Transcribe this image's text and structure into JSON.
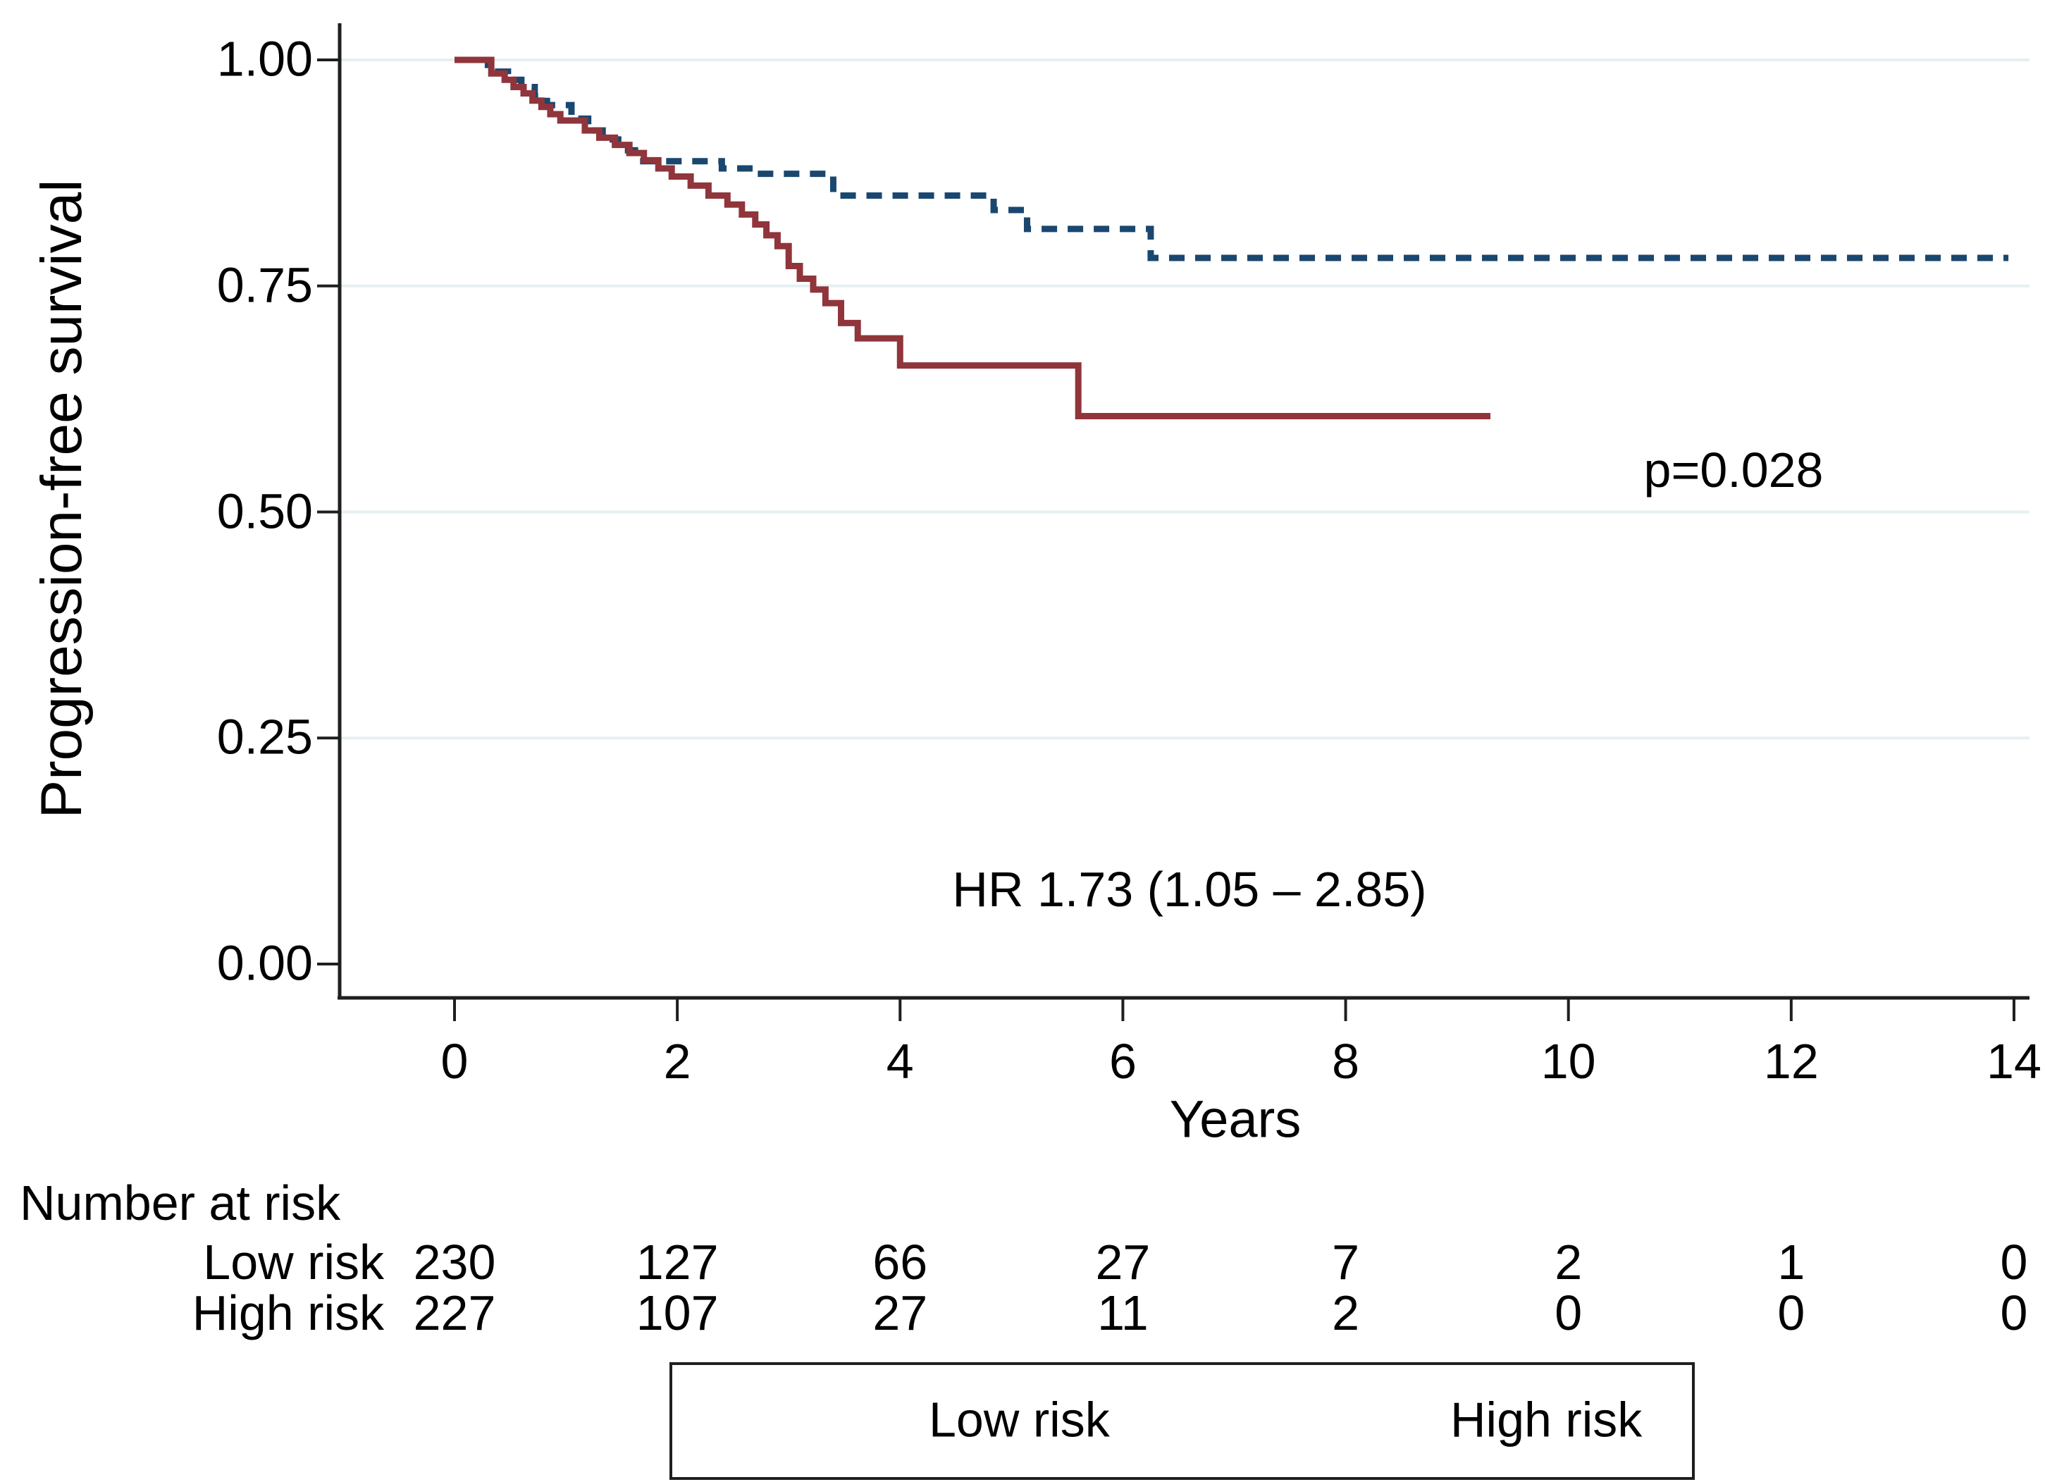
{
  "figure": {
    "y_axis": {
      "title": "Progression-free survival",
      "tick_labels": [
        "1.00",
        "0.75",
        "0.50",
        "0.25",
        "0.00"
      ]
    },
    "x_axis": {
      "title": "Years",
      "tick_labels": [
        "0",
        "2",
        "4",
        "6",
        "8",
        "10",
        "12",
        "14"
      ]
    },
    "annotations": {
      "p_value": "p=0.028",
      "hazard_ratio": "HR 1.73 (1.05 – 2.85)"
    },
    "colors": {
      "low_risk": "#1a476f",
      "high_risk": "#90353b",
      "gridline": "#e6eff1",
      "axis": "#1f1f1f",
      "text": "#000000"
    }
  },
  "risk_table": {
    "title": "Number at risk",
    "rows": [
      {
        "label": "Low risk",
        "values": [
          "230",
          "127",
          "66",
          "27",
          "7",
          "2",
          "1",
          "0"
        ]
      },
      {
        "label": "High risk",
        "values": [
          "227",
          "107",
          "27",
          "11",
          "2",
          "0",
          "0",
          "0"
        ]
      }
    ]
  },
  "legend": {
    "items": [
      {
        "label": "Low risk",
        "style": "dashed",
        "color": "#1a476f"
      },
      {
        "label": "High risk",
        "style": "solid",
        "color": "#90353b"
      }
    ]
  },
  "chart_data": {
    "type": "line",
    "subtype": "kaplan-meier-step",
    "title": "",
    "xlabel": "Years",
    "ylabel": "Progression-free survival",
    "xlim": [
      0,
      14
    ],
    "ylim": [
      0,
      1
    ],
    "x_ticks": [
      0,
      2,
      4,
      6,
      8,
      10,
      12,
      14
    ],
    "y_ticks": [
      1,
      0.75,
      0.5,
      0.25,
      0
    ],
    "grid": "horizontal",
    "legend_position": "bottom-boxed",
    "p_value": 0.028,
    "hazard_ratio": {
      "estimate": 1.73,
      "ci_low": 1.05,
      "ci_high": 2.85
    },
    "series": [
      {
        "name": "Low risk",
        "style": "dashed",
        "color": "#1a476f",
        "end_x": 13.95,
        "steps": [
          [
            0,
            1.0
          ],
          [
            0.3,
            0.987
          ],
          [
            0.48,
            0.978
          ],
          [
            0.6,
            0.97
          ],
          [
            0.72,
            0.96
          ],
          [
            0.83,
            0.95
          ],
          [
            1.05,
            0.935
          ],
          [
            1.2,
            0.922
          ],
          [
            1.33,
            0.912
          ],
          [
            1.47,
            0.9
          ],
          [
            1.62,
            0.888
          ],
          [
            2.4,
            0.88
          ],
          [
            2.7,
            0.874
          ],
          [
            3.4,
            0.85
          ],
          [
            4.84,
            0.834
          ],
          [
            5.14,
            0.813
          ],
          [
            6.25,
            0.781
          ]
        ]
      },
      {
        "name": "High risk",
        "style": "solid",
        "color": "#90353b",
        "end_x": 9.3,
        "steps": [
          [
            0,
            1.0
          ],
          [
            0.33,
            0.985
          ],
          [
            0.45,
            0.978
          ],
          [
            0.53,
            0.97
          ],
          [
            0.62,
            0.963
          ],
          [
            0.7,
            0.955
          ],
          [
            0.78,
            0.948
          ],
          [
            0.86,
            0.94
          ],
          [
            0.95,
            0.933
          ],
          [
            1.17,
            0.922
          ],
          [
            1.3,
            0.914
          ],
          [
            1.44,
            0.906
          ],
          [
            1.57,
            0.897
          ],
          [
            1.7,
            0.889
          ],
          [
            1.83,
            0.88
          ],
          [
            1.95,
            0.871
          ],
          [
            2.12,
            0.861
          ],
          [
            2.28,
            0.85
          ],
          [
            2.45,
            0.84
          ],
          [
            2.58,
            0.829
          ],
          [
            2.7,
            0.818
          ],
          [
            2.8,
            0.806
          ],
          [
            2.9,
            0.794
          ],
          [
            3.0,
            0.772
          ],
          [
            3.1,
            0.758
          ],
          [
            3.22,
            0.746
          ],
          [
            3.33,
            0.731
          ],
          [
            3.47,
            0.709
          ],
          [
            3.62,
            0.692
          ],
          [
            4.0,
            0.662
          ],
          [
            5.6,
            0.606
          ]
        ]
      }
    ],
    "annotations": [
      {
        "text": "p=0.028",
        "x": 11.5,
        "y": 0.547
      },
      {
        "text": "HR 1.73 (1.05 – 2.85)",
        "x": 6.6,
        "y": 0.082
      }
    ]
  }
}
